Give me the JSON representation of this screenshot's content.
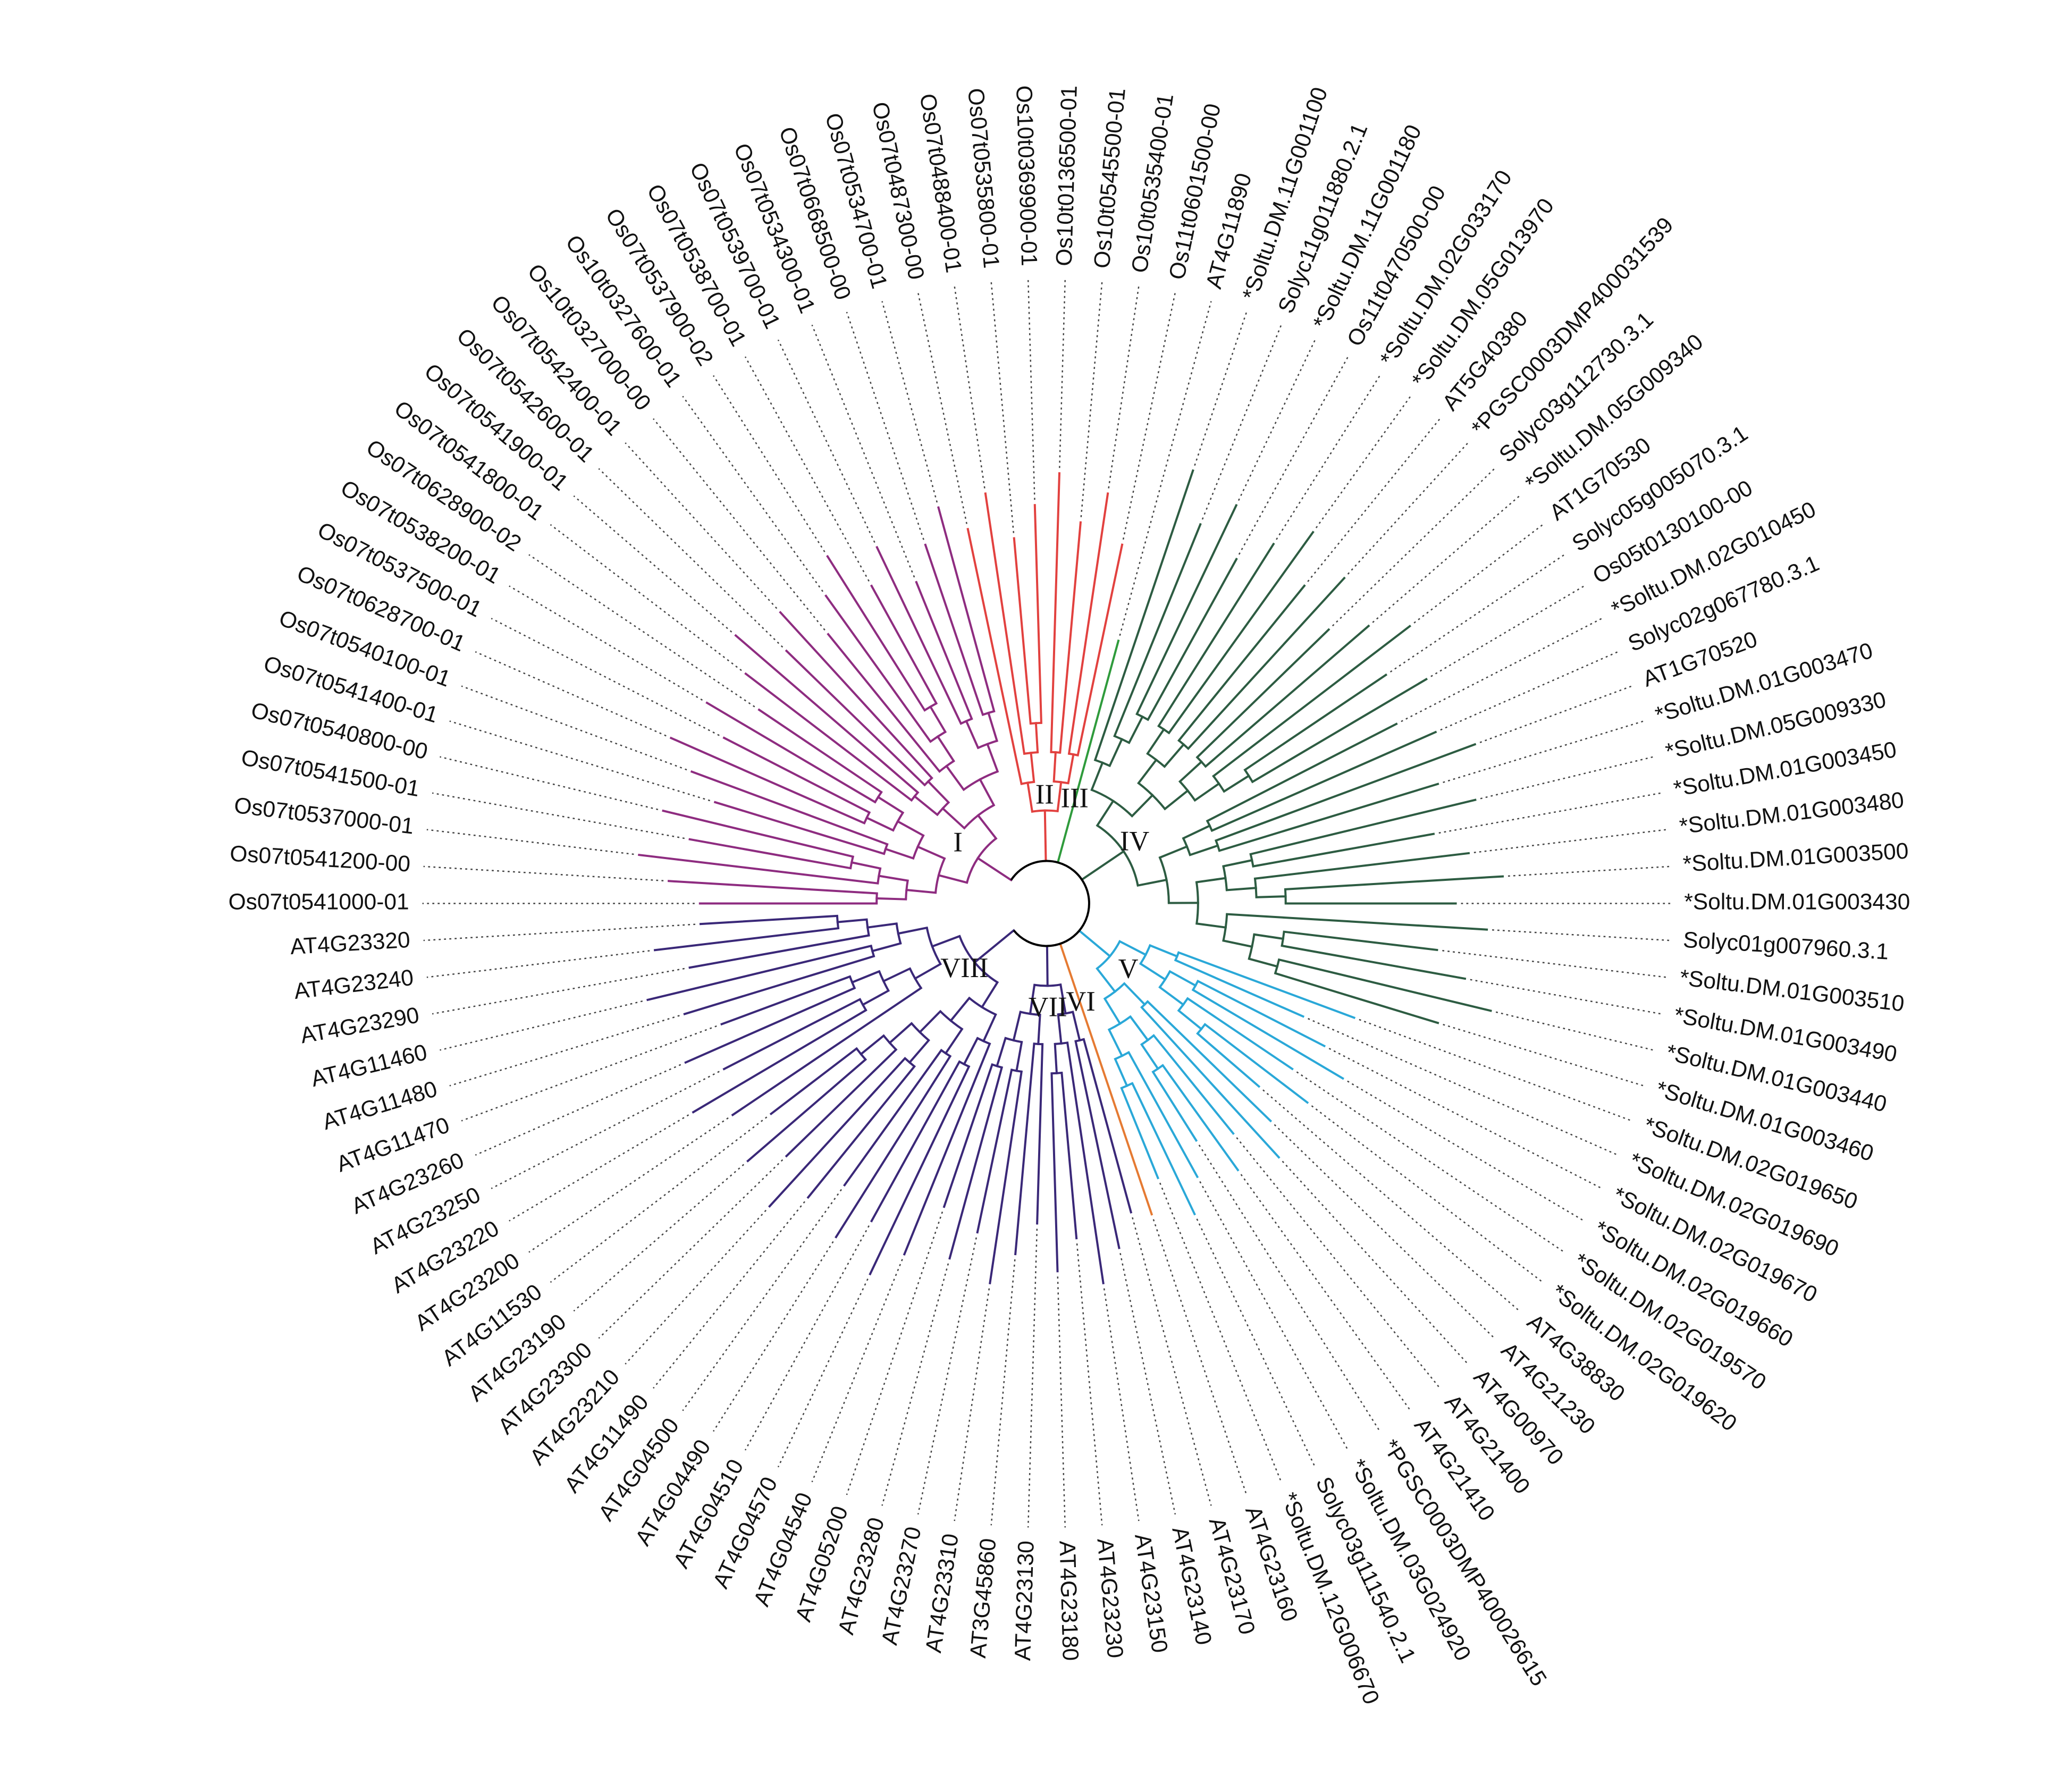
{
  "clades": [
    {
      "label": "I",
      "color": "#8e2c80",
      "leaves": [
        "Os07t0541000-01",
        "Os07t0541200-00",
        "Os07t0537000-01",
        "Os07t0541500-01",
        "Os07t0540800-00",
        "Os07t0541400-01",
        "Os07t0540100-01",
        "Os07t0628700-01",
        "Os07t0537500-01",
        "Os07t0538200-01",
        "Os07t0628900-02",
        "Os07t0541800-01",
        "Os07t0541900-01",
        "Os07t0542600-01",
        "Os07t0542400-01",
        "Os10t0327000-00",
        "Os10t0327600-01",
        "Os07t0537900-02",
        "Os07t0538700-01",
        "Os07t0539700-01",
        "Os07t0534300-01",
        "Os07t0668500-00",
        "Os07t0534700-01"
      ]
    },
    {
      "label": "II",
      "color": "#e2413f",
      "leaves": [
        "Os07t0487300-00",
        "Os07t0488400-01",
        "Os07t0535800-01",
        "Os10t0369900-01",
        "Os10t0136500-01",
        "Os10t0545500-01",
        "Os10t0535400-01",
        "Os11t0601500-00"
      ]
    },
    {
      "label": "III",
      "color": "#2f9b3c",
      "leaves": [
        "AT4G11890"
      ]
    },
    {
      "label": "IV",
      "color": "#2d5c42",
      "leaves": [
        "*Soltu.DM.11G001100",
        "Solyc11g011880.2.1",
        "*Soltu.DM.11G001180",
        "Os11t0470500-00",
        "*Soltu.DM.02G033170",
        "*Soltu.DM.05G013970",
        "AT5G40380",
        "*PGSC0003DMP400031539",
        "Solyc03g112730.3.1",
        "*Soltu.DM.05G009340",
        "AT1G70530",
        "Solyc05g005070.3.1",
        "Os05t0130100-00",
        "*Soltu.DM.02G010450",
        "Solyc02g067780.3.1",
        "AT1G70520",
        "*Soltu.DM.01G003470",
        "*Soltu.DM.05G009330",
        "*Soltu.DM.01G003450",
        "*Soltu.DM.01G003480",
        "*Soltu.DM.01G003500",
        "*Soltu.DM.01G003430",
        "Solyc01g007960.3.1",
        "*Soltu.DM.01G003510",
        "*Soltu.DM.01G003490",
        "*Soltu.DM.01G003440",
        "*Soltu.DM.01G003460"
      ]
    },
    {
      "label": "V",
      "color": "#2aa8d8",
      "leaves": [
        "*Soltu.DM.02G019650",
        "*Soltu.DM.02G019690",
        "*Soltu.DM.02G019670",
        "*Soltu.DM.02G019660",
        "*Soltu.DM.02G019570",
        "*Soltu.DM.02G019620",
        "AT4G38830",
        "AT4G21230",
        "AT4G00970",
        "AT4G21400",
        "AT4G21410",
        "*PGSC0003DMP400026615",
        "*Soltu.DM.03G024920",
        "Solyc03g111540.2.1",
        "*Soltu.DM.12G006670"
      ]
    },
    {
      "label": "VI",
      "color": "#e57a32",
      "leaves": [
        "AT4G23160"
      ]
    },
    {
      "label": "VII",
      "color": "#3a2878",
      "leaves": [
        "AT4G23170",
        "AT4G23140",
        "AT4G23150",
        "AT4G23230",
        "AT4G23180",
        "AT4G23130",
        "AT3G45860",
        "AT4G23310",
        "AT4G23270",
        "AT4G23280",
        "AT4G05200"
      ]
    },
    {
      "label": "VIII",
      "color": "#3a2878",
      "leaves": [
        "AT4G04540",
        "AT4G04570",
        "AT4G04510",
        "AT4G04490",
        "AT4G04500",
        "AT4G11490",
        "AT4G23210",
        "AT4G23300",
        "AT4G23190",
        "AT4G11530",
        "AT4G23200",
        "AT4G23220",
        "AT4G23250",
        "AT4G23260",
        "AT4G11470",
        "AT4G11480",
        "AT4G11460",
        "AT4G23290",
        "AT4G23240",
        "AT4G23320"
      ]
    }
  ]
}
